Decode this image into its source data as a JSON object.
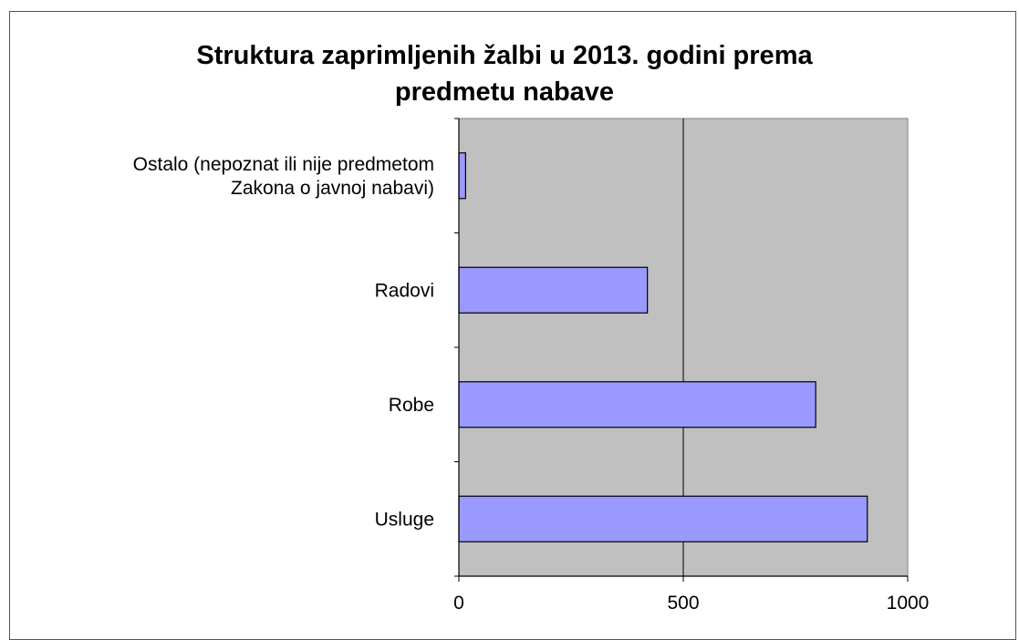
{
  "chart_data": {
    "type": "bar",
    "orientation": "horizontal",
    "title_lines": [
      "Struktura zaprimljenih žalbi u 2013. godini prema",
      "predmetu nabave"
    ],
    "categories": [
      [
        "Ostalo (nepoznat ili nije predmetom",
        "Zakona o javnoj nabavi)"
      ],
      [
        "Radovi"
      ],
      [
        "Robe"
      ],
      [
        "Usluge"
      ]
    ],
    "values": [
      15,
      420,
      795,
      910
    ],
    "xlim": [
      0,
      1000
    ],
    "xticks": [
      "0",
      "500",
      "1000"
    ],
    "xtick_values": [
      0,
      500,
      1000
    ],
    "gridlines": "vertical at 500",
    "plot_background": "#c0c0c0",
    "bar_color": "#9999ff",
    "bar_stroke": "#000000"
  }
}
